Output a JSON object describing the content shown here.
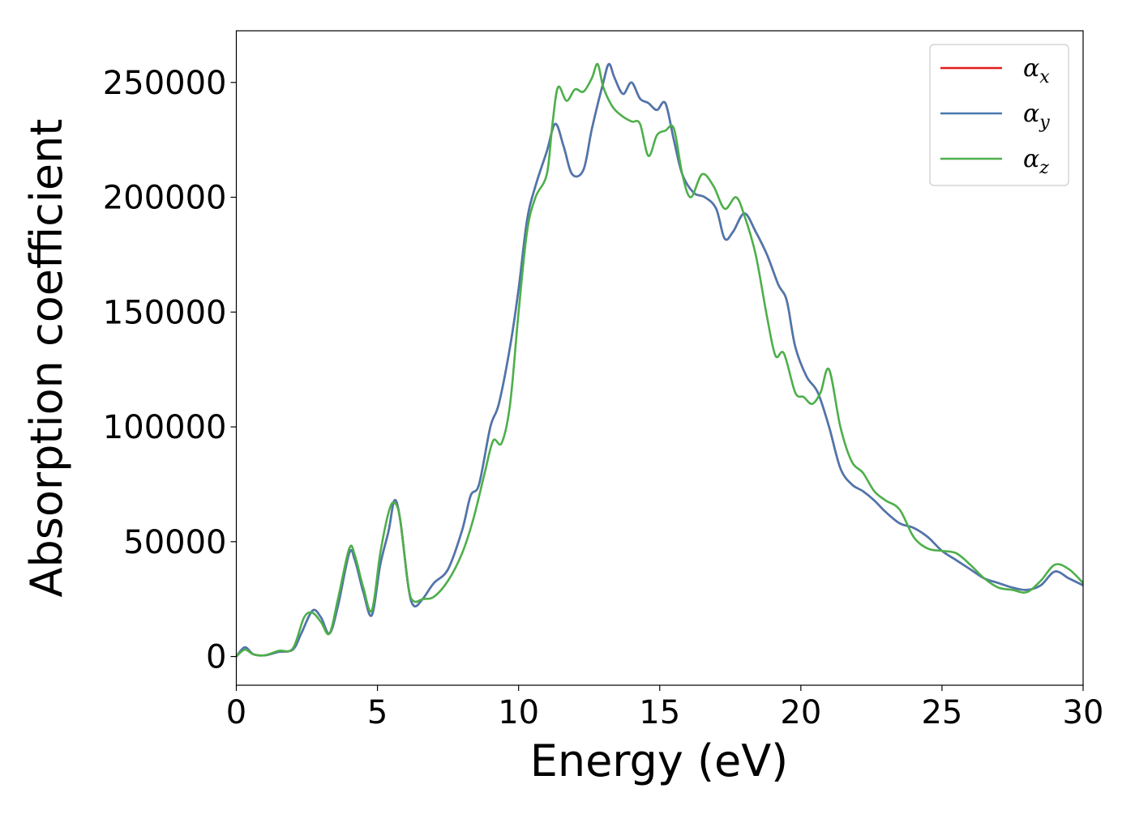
{
  "chart_data": {
    "type": "line",
    "title": "",
    "xlabel": "Energy (eV)",
    "ylabel": "Absorption coefficient",
    "xlim": [
      0,
      30
    ],
    "ylim": [
      -12500,
      272500
    ],
    "xticks": [
      0,
      5,
      10,
      15,
      20,
      25,
      30
    ],
    "yticks": [
      0,
      50000,
      100000,
      150000,
      200000,
      250000
    ],
    "grid": false,
    "legend_position": "top-right",
    "series": [
      {
        "name": "α",
        "subscript": "x",
        "color": "#e41a1c",
        "points": [
          [
            0,
            0
          ],
          [
            0.3,
            4000
          ],
          [
            0.6,
            1000
          ],
          [
            1,
            500
          ],
          [
            1.5,
            2000
          ],
          [
            2,
            3000
          ],
          [
            2.3,
            10000
          ],
          [
            2.7,
            20000
          ],
          [
            3,
            17000
          ],
          [
            3.3,
            10000
          ],
          [
            3.6,
            22000
          ],
          [
            4,
            45000
          ],
          [
            4.2,
            42000
          ],
          [
            4.5,
            28000
          ],
          [
            4.8,
            18000
          ],
          [
            5.1,
            40000
          ],
          [
            5.4,
            55000
          ],
          [
            5.6,
            68000
          ],
          [
            5.8,
            60000
          ],
          [
            6.1,
            30000
          ],
          [
            6.3,
            22000
          ],
          [
            6.6,
            25000
          ],
          [
            7,
            32000
          ],
          [
            7.5,
            38000
          ],
          [
            8,
            55000
          ],
          [
            8.3,
            70000
          ],
          [
            8.6,
            75000
          ],
          [
            9,
            100000
          ],
          [
            9.3,
            110000
          ],
          [
            9.7,
            135000
          ],
          [
            10,
            160000
          ],
          [
            10.3,
            190000
          ],
          [
            10.6,
            205000
          ],
          [
            11,
            220000
          ],
          [
            11.3,
            232000
          ],
          [
            11.6,
            222000
          ],
          [
            11.9,
            210000
          ],
          [
            12.3,
            212000
          ],
          [
            12.6,
            230000
          ],
          [
            13,
            250000
          ],
          [
            13.2,
            258000
          ],
          [
            13.4,
            252000
          ],
          [
            13.7,
            245000
          ],
          [
            14,
            250000
          ],
          [
            14.3,
            243000
          ],
          [
            14.6,
            241000
          ],
          [
            14.9,
            238000
          ],
          [
            15.2,
            241000
          ],
          [
            15.5,
            225000
          ],
          [
            15.8,
            210000
          ],
          [
            16.2,
            202000
          ],
          [
            16.6,
            200000
          ],
          [
            17,
            195000
          ],
          [
            17.3,
            182000
          ],
          [
            17.6,
            185000
          ],
          [
            18,
            193000
          ],
          [
            18.4,
            185000
          ],
          [
            18.8,
            175000
          ],
          [
            19.2,
            162000
          ],
          [
            19.5,
            155000
          ],
          [
            19.8,
            135000
          ],
          [
            20.2,
            122000
          ],
          [
            20.6,
            115000
          ],
          [
            21,
            100000
          ],
          [
            21.4,
            82000
          ],
          [
            21.8,
            75000
          ],
          [
            22.2,
            72000
          ],
          [
            22.6,
            68000
          ],
          [
            23,
            63000
          ],
          [
            23.5,
            58000
          ],
          [
            24,
            56000
          ],
          [
            24.5,
            52000
          ],
          [
            25,
            46000
          ],
          [
            25.5,
            42000
          ],
          [
            26,
            38000
          ],
          [
            26.5,
            34000
          ],
          [
            27,
            32000
          ],
          [
            27.5,
            30000
          ],
          [
            28,
            29000
          ],
          [
            28.5,
            31000
          ],
          [
            29,
            37000
          ],
          [
            29.5,
            34000
          ],
          [
            30,
            31000
          ]
        ]
      },
      {
        "name": "α",
        "subscript": "y",
        "color": "#4a78b0",
        "points": [
          [
            0,
            0
          ],
          [
            0.3,
            4000
          ],
          [
            0.6,
            1000
          ],
          [
            1,
            500
          ],
          [
            1.5,
            2000
          ],
          [
            2,
            3000
          ],
          [
            2.3,
            10000
          ],
          [
            2.7,
            20000
          ],
          [
            3,
            17000
          ],
          [
            3.3,
            10000
          ],
          [
            3.6,
            22000
          ],
          [
            4,
            45000
          ],
          [
            4.2,
            42000
          ],
          [
            4.5,
            28000
          ],
          [
            4.8,
            18000
          ],
          [
            5.1,
            40000
          ],
          [
            5.4,
            55000
          ],
          [
            5.6,
            68000
          ],
          [
            5.8,
            60000
          ],
          [
            6.1,
            30000
          ],
          [
            6.3,
            22000
          ],
          [
            6.6,
            25000
          ],
          [
            7,
            32000
          ],
          [
            7.5,
            38000
          ],
          [
            8,
            55000
          ],
          [
            8.3,
            70000
          ],
          [
            8.6,
            75000
          ],
          [
            9,
            100000
          ],
          [
            9.3,
            110000
          ],
          [
            9.7,
            135000
          ],
          [
            10,
            160000
          ],
          [
            10.3,
            190000
          ],
          [
            10.6,
            205000
          ],
          [
            11,
            220000
          ],
          [
            11.3,
            232000
          ],
          [
            11.6,
            222000
          ],
          [
            11.9,
            210000
          ],
          [
            12.3,
            212000
          ],
          [
            12.6,
            230000
          ],
          [
            13,
            250000
          ],
          [
            13.2,
            258000
          ],
          [
            13.4,
            252000
          ],
          [
            13.7,
            245000
          ],
          [
            14,
            250000
          ],
          [
            14.3,
            243000
          ],
          [
            14.6,
            241000
          ],
          [
            14.9,
            238000
          ],
          [
            15.2,
            241000
          ],
          [
            15.5,
            225000
          ],
          [
            15.8,
            210000
          ],
          [
            16.2,
            202000
          ],
          [
            16.6,
            200000
          ],
          [
            17,
            195000
          ],
          [
            17.3,
            182000
          ],
          [
            17.6,
            185000
          ],
          [
            18,
            193000
          ],
          [
            18.4,
            185000
          ],
          [
            18.8,
            175000
          ],
          [
            19.2,
            162000
          ],
          [
            19.5,
            155000
          ],
          [
            19.8,
            135000
          ],
          [
            20.2,
            122000
          ],
          [
            20.6,
            115000
          ],
          [
            21,
            100000
          ],
          [
            21.4,
            82000
          ],
          [
            21.8,
            75000
          ],
          [
            22.2,
            72000
          ],
          [
            22.6,
            68000
          ],
          [
            23,
            63000
          ],
          [
            23.5,
            58000
          ],
          [
            24,
            56000
          ],
          [
            24.5,
            52000
          ],
          [
            25,
            46000
          ],
          [
            25.5,
            42000
          ],
          [
            26,
            38000
          ],
          [
            26.5,
            34000
          ],
          [
            27,
            32000
          ],
          [
            27.5,
            30000
          ],
          [
            28,
            29000
          ],
          [
            28.5,
            31000
          ],
          [
            29,
            37000
          ],
          [
            29.5,
            34000
          ],
          [
            30,
            31000
          ]
        ]
      },
      {
        "name": "α",
        "subscript": "z",
        "color": "#4daf4a",
        "points": [
          [
            0,
            0
          ],
          [
            0.3,
            3000
          ],
          [
            0.6,
            1000
          ],
          [
            1,
            500
          ],
          [
            1.5,
            2500
          ],
          [
            2,
            3500
          ],
          [
            2.4,
            17000
          ],
          [
            2.7,
            19000
          ],
          [
            3,
            15000
          ],
          [
            3.3,
            10000
          ],
          [
            3.6,
            25000
          ],
          [
            4,
            47000
          ],
          [
            4.2,
            44000
          ],
          [
            4.5,
            30000
          ],
          [
            4.8,
            20000
          ],
          [
            5.1,
            45000
          ],
          [
            5.4,
            63000
          ],
          [
            5.6,
            67000
          ],
          [
            5.8,
            60000
          ],
          [
            6.1,
            30000
          ],
          [
            6.3,
            24000
          ],
          [
            6.6,
            25000
          ],
          [
            7,
            26000
          ],
          [
            7.5,
            33000
          ],
          [
            8,
            45000
          ],
          [
            8.4,
            60000
          ],
          [
            8.8,
            80000
          ],
          [
            9.1,
            94000
          ],
          [
            9.4,
            93000
          ],
          [
            9.7,
            110000
          ],
          [
            10,
            150000
          ],
          [
            10.3,
            185000
          ],
          [
            10.6,
            200000
          ],
          [
            11,
            210000
          ],
          [
            11.2,
            232000
          ],
          [
            11.4,
            248000
          ],
          [
            11.7,
            242000
          ],
          [
            12,
            247000
          ],
          [
            12.3,
            246000
          ],
          [
            12.6,
            252000
          ],
          [
            12.8,
            258000
          ],
          [
            13,
            248000
          ],
          [
            13.3,
            240000
          ],
          [
            13.6,
            236000
          ],
          [
            14,
            233000
          ],
          [
            14.3,
            232000
          ],
          [
            14.6,
            218000
          ],
          [
            14.9,
            227000
          ],
          [
            15.2,
            229000
          ],
          [
            15.5,
            230000
          ],
          [
            15.8,
            210000
          ],
          [
            16.1,
            200000
          ],
          [
            16.5,
            210000
          ],
          [
            16.9,
            205000
          ],
          [
            17.3,
            195000
          ],
          [
            17.7,
            200000
          ],
          [
            18,
            192000
          ],
          [
            18.4,
            175000
          ],
          [
            18.8,
            148000
          ],
          [
            19.1,
            131000
          ],
          [
            19.4,
            132000
          ],
          [
            19.8,
            115000
          ],
          [
            20.1,
            113000
          ],
          [
            20.4,
            110000
          ],
          [
            20.7,
            115000
          ],
          [
            21,
            125000
          ],
          [
            21.4,
            100000
          ],
          [
            21.8,
            85000
          ],
          [
            22.2,
            80000
          ],
          [
            22.6,
            72000
          ],
          [
            23,
            68000
          ],
          [
            23.5,
            64000
          ],
          [
            24,
            52000
          ],
          [
            24.5,
            47000
          ],
          [
            25,
            46000
          ],
          [
            25.5,
            45000
          ],
          [
            26,
            40000
          ],
          [
            26.5,
            34000
          ],
          [
            27,
            30000
          ],
          [
            27.5,
            29000
          ],
          [
            28,
            28000
          ],
          [
            28.5,
            33000
          ],
          [
            29,
            40000
          ],
          [
            29.5,
            38000
          ],
          [
            30,
            32000
          ]
        ]
      }
    ]
  }
}
